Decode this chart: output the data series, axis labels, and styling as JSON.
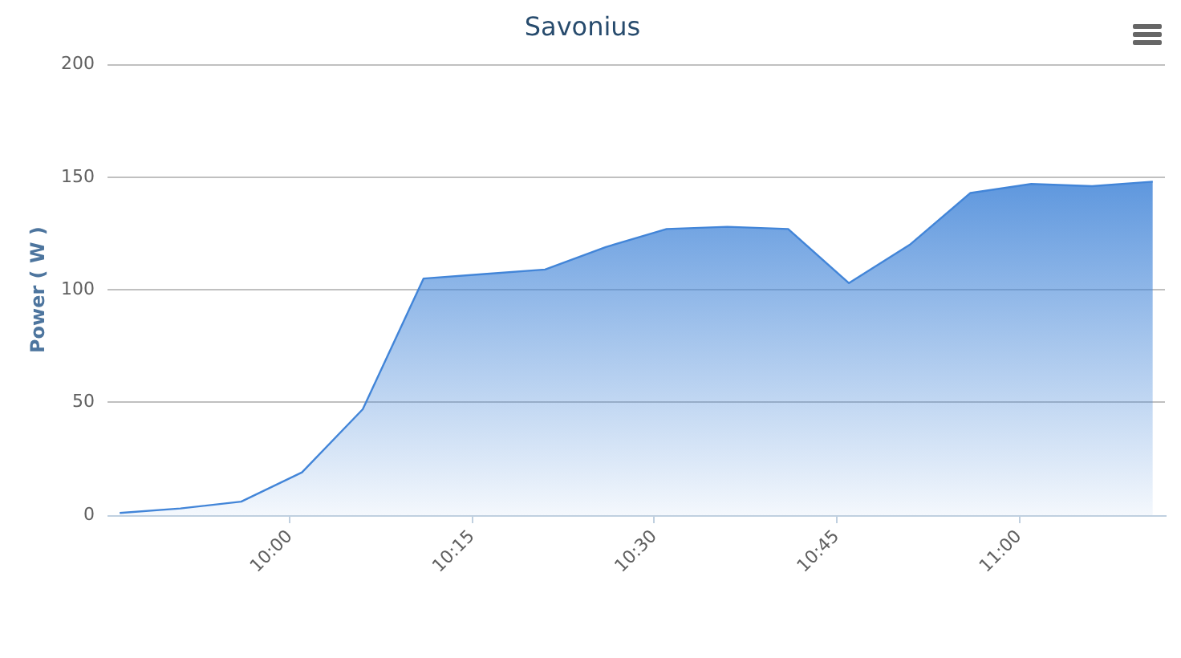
{
  "chart_data": {
    "type": "area",
    "title": "Savonius",
    "ylabel": "Power ( W )",
    "x": [
      9.7667,
      9.85,
      9.9333,
      10.0167,
      10.1,
      10.1833,
      10.2667,
      10.35,
      10.4333,
      10.5167,
      10.6,
      10.6833,
      10.7667,
      10.85,
      10.9333,
      11.0167,
      11.1,
      11.1833
    ],
    "series": [
      {
        "color": "#4285d8",
        "values": [
          1,
          3,
          6,
          19,
          47,
          105,
          107,
          109,
          119,
          127,
          128,
          127,
          103,
          120,
          143,
          147,
          146,
          148
        ]
      }
    ],
    "xlim": [
      9.75,
      11.2
    ],
    "xticks": [
      {
        "value": 10,
        "label": "10:00"
      },
      {
        "value": 10.25,
        "label": "10:15"
      },
      {
        "value": 10.5,
        "label": "10:30"
      },
      {
        "value": 10.75,
        "label": "10:45"
      },
      {
        "value": 11,
        "label": "11:00"
      }
    ],
    "ylim": [
      0,
      200
    ],
    "yticks": [
      0,
      50,
      100,
      150,
      200
    ],
    "grid": "y"
  }
}
